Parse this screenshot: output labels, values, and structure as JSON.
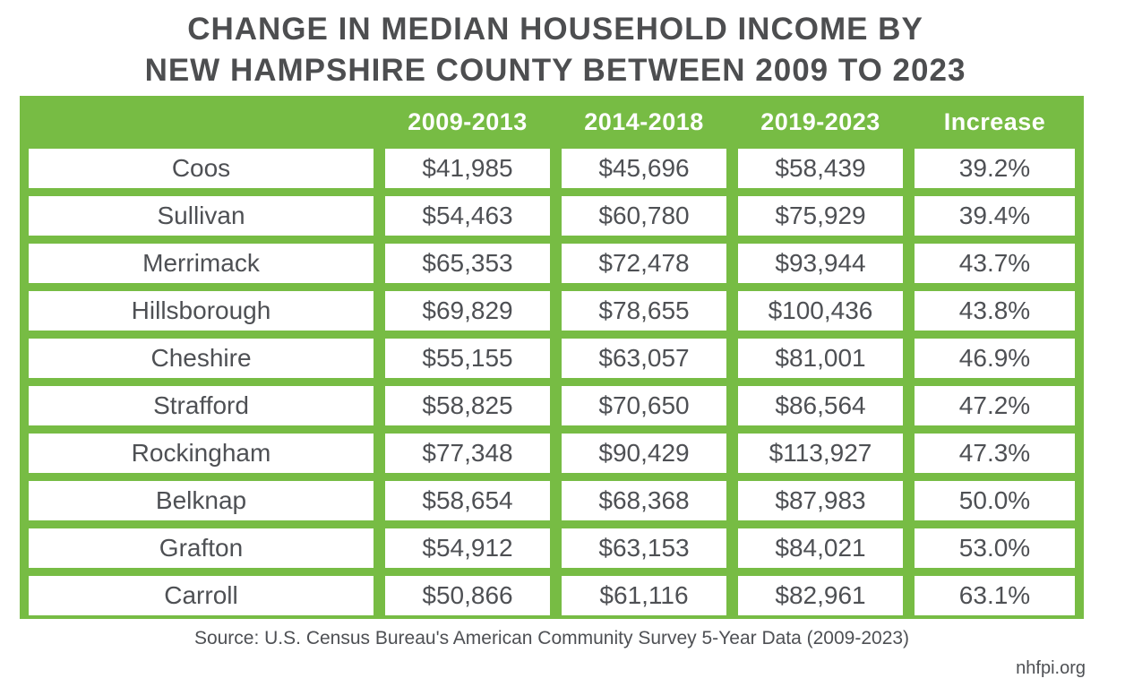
{
  "title": {
    "line1": "CHANGE IN MEDIAN HOUSEHOLD INCOME BY",
    "line2": "NEW HAMPSHIRE COUNTY BETWEEN 2009 TO 2023"
  },
  "colors": {
    "green": "#77bc44",
    "title_text": "#4d4e50",
    "cell_text": "#4e5054",
    "header_text": "#ffffff"
  },
  "table": {
    "headers": [
      "2009-2013",
      "2014-2018",
      "2019-2023",
      "Increase"
    ],
    "rows": [
      {
        "county": "Coos",
        "values": [
          "$41,985",
          "$45,696",
          "$58,439"
        ],
        "increase": "39.2%"
      },
      {
        "county": "Sullivan",
        "values": [
          "$54,463",
          "$60,780",
          "$75,929"
        ],
        "increase": "39.4%"
      },
      {
        "county": "Merrimack",
        "values": [
          "$65,353",
          "$72,478",
          "$93,944"
        ],
        "increase": "43.7%"
      },
      {
        "county": "Hillsborough",
        "values": [
          "$69,829",
          "$78,655",
          "$100,436"
        ],
        "increase": "43.8%"
      },
      {
        "county": "Cheshire",
        "values": [
          "$55,155",
          "$63,057",
          "$81,001"
        ],
        "increase": "46.9%"
      },
      {
        "county": "Strafford",
        "values": [
          "$58,825",
          "$70,650",
          "$86,564"
        ],
        "increase": "47.2%"
      },
      {
        "county": "Rockingham",
        "values": [
          "$77,348",
          "$90,429",
          "$113,927"
        ],
        "increase": "47.3%"
      },
      {
        "county": "Belknap",
        "values": [
          "$58,654",
          "$68,368",
          "$87,983"
        ],
        "increase": "50.0%"
      },
      {
        "county": "Grafton",
        "values": [
          "$54,912",
          "$63,153",
          "$84,021"
        ],
        "increase": "53.0%"
      },
      {
        "county": "Carroll",
        "values": [
          "$50,866",
          "$61,116",
          "$82,961"
        ],
        "increase": "63.1%"
      }
    ]
  },
  "footer": {
    "source": "Source: U.S. Census Bureau's American Community Survey 5-Year Data (2009-2023)",
    "site": "nhfpi.org"
  },
  "chart_data": {
    "type": "table",
    "title": "Change in Median Household Income by New Hampshire County Between 2009 to 2023",
    "columns": [
      "County",
      "2009-2013",
      "2014-2018",
      "2019-2023",
      "Increase (%)"
    ],
    "rows": [
      [
        "Coos",
        41985,
        45696,
        58439,
        39.2
      ],
      [
        "Sullivan",
        54463,
        60780,
        75929,
        39.4
      ],
      [
        "Merrimack",
        65353,
        72478,
        93944,
        43.7
      ],
      [
        "Hillsborough",
        69829,
        78655,
        100436,
        43.8
      ],
      [
        "Cheshire",
        55155,
        63057,
        81001,
        46.9
      ],
      [
        "Strafford",
        58825,
        70650,
        86564,
        47.2
      ],
      [
        "Rockingham",
        77348,
        90429,
        113927,
        47.3
      ],
      [
        "Belknap",
        58654,
        68368,
        87983,
        50.0
      ],
      [
        "Grafton",
        54912,
        63153,
        84021,
        53.0
      ],
      [
        "Carroll",
        50866,
        61116,
        82961,
        63.1
      ]
    ],
    "source": "U.S. Census Bureau's American Community Survey 5-Year Data (2009-2023)",
    "legend_position": "none",
    "grid": false
  }
}
